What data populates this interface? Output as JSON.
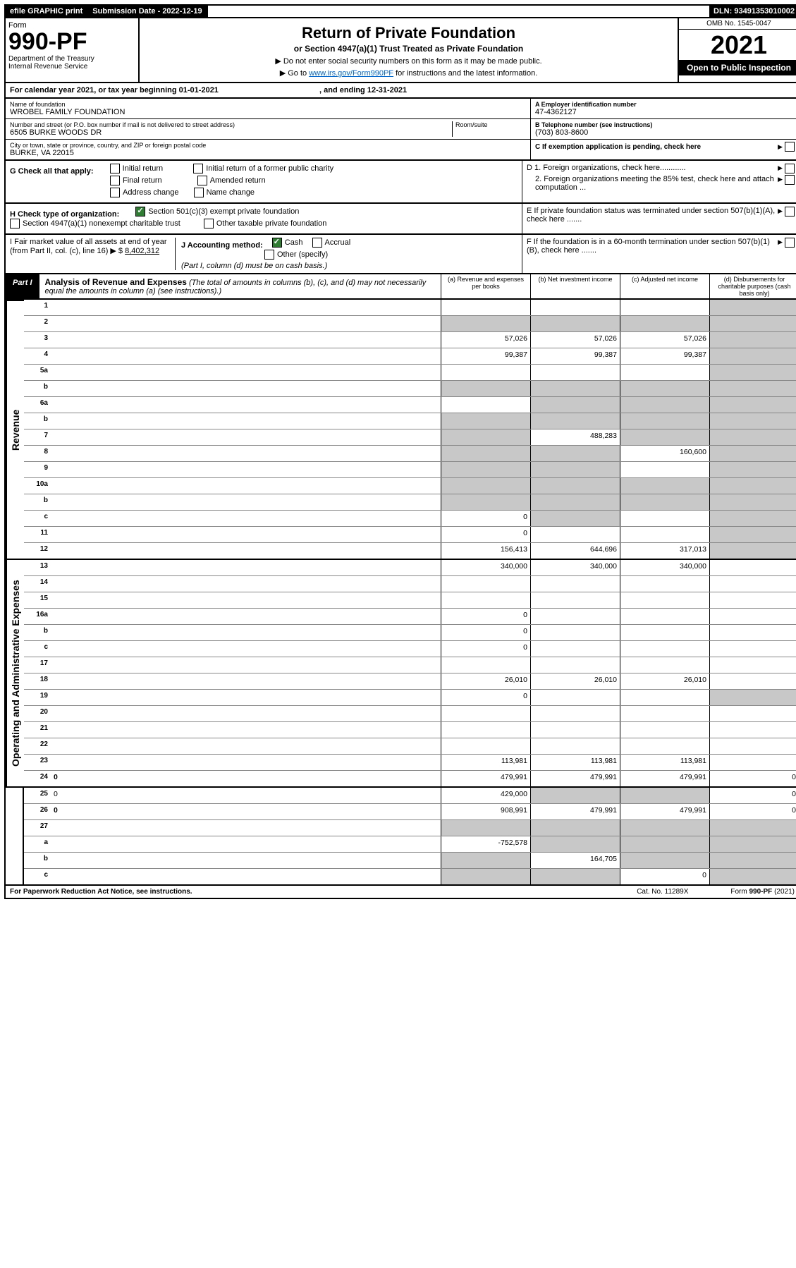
{
  "topbar": {
    "efile": "efile GRAPHIC print",
    "submission_label": "Submission Date - 2022-12-19",
    "dln": "DLN: 93491353010002"
  },
  "header": {
    "form_word": "Form",
    "form_no": "990-PF",
    "dept": "Department of the Treasury",
    "irs": "Internal Revenue Service",
    "title": "Return of Private Foundation",
    "subtitle": "or Section 4947(a)(1) Trust Treated as Private Foundation",
    "instr1": "▶ Do not enter social security numbers on this form as it may be made public.",
    "instr2_pre": "▶ Go to ",
    "instr2_link": "www.irs.gov/Form990PF",
    "instr2_post": " for instructions and the latest information.",
    "omb": "OMB No. 1545-0047",
    "year": "2021",
    "open_public": "Open to Public Inspection"
  },
  "cal_year": {
    "pre": "For calendar year 2021, or tax year beginning ",
    "begin": "01-01-2021",
    "mid": " , and ending ",
    "end": "12-31-2021"
  },
  "info": {
    "name_lbl": "Name of foundation",
    "name_val": "WROBEL FAMILY FOUNDATION",
    "addr_lbl": "Number and street (or P.O. box number if mail is not delivered to street address)",
    "addr_val": "6505 BURKE WOODS DR",
    "room_lbl": "Room/suite",
    "city_lbl": "City or town, state or province, country, and ZIP or foreign postal code",
    "city_val": "BURKE, VA  22015",
    "a_lbl": "A Employer identification number",
    "a_val": "47-4362127",
    "b_lbl": "B Telephone number (see instructions)",
    "b_val": "(703) 803-8600",
    "c_lbl": "C If exemption application is pending, check here",
    "d1_lbl": "D 1. Foreign organizations, check here............",
    "d2_lbl": "2. Foreign organizations meeting the 85% test, check here and attach computation ...",
    "e_lbl": "E  If private foundation status was terminated under section 507(b)(1)(A), check here .......",
    "f_lbl": "F  If the foundation is in a 60-month termination under section 507(b)(1)(B), check here .......",
    "g_lbl": "G Check all that apply:",
    "g_opts": [
      "Initial return",
      "Final return",
      "Address change",
      "Initial return of a former public charity",
      "Amended return",
      "Name change"
    ],
    "h_lbl": "H Check type of organization:",
    "h_opt1": "Section 501(c)(3) exempt private foundation",
    "h_opt2": "Section 4947(a)(1) nonexempt charitable trust",
    "h_opt3": "Other taxable private foundation",
    "i_lbl": "I Fair market value of all assets at end of year (from Part II, col. (c), line 16) ▶ $",
    "i_val": "8,402,312",
    "j_lbl": "J Accounting method:",
    "j_opt1": "Cash",
    "j_opt2": "Accrual",
    "j_opt3": "Other (specify)",
    "j_note": "(Part I, column (d) must be on cash basis.)"
  },
  "part1": {
    "label": "Part I",
    "title": "Analysis of Revenue and Expenses",
    "title_note": "(The total of amounts in columns (b), (c), and (d) may not necessarily equal the amounts in column (a) (see instructions).)",
    "col_a": "(a)   Revenue and expenses per books",
    "col_b": "(b)   Net investment income",
    "col_c": "(c)   Adjusted net income",
    "col_d": "(d)   Disbursements for charitable purposes (cash basis only)"
  },
  "side_labels": {
    "revenue": "Revenue",
    "expenses": "Operating and Administrative Expenses"
  },
  "rows": [
    {
      "n": "1",
      "d": "",
      "a": "",
      "b": "",
      "c": "",
      "grey": [
        "d"
      ]
    },
    {
      "n": "2",
      "d": "",
      "a": "",
      "b": "",
      "c": "",
      "grey": [
        "a",
        "b",
        "c",
        "d"
      ],
      "checked": true
    },
    {
      "n": "3",
      "d": "",
      "a": "57,026",
      "b": "57,026",
      "c": "57,026",
      "grey": [
        "d"
      ]
    },
    {
      "n": "4",
      "d": "",
      "a": "99,387",
      "b": "99,387",
      "c": "99,387",
      "grey": [
        "d"
      ]
    },
    {
      "n": "5a",
      "d": "",
      "a": "",
      "b": "",
      "c": "",
      "grey": [
        "d"
      ]
    },
    {
      "n": "b",
      "d": "",
      "a": "",
      "b": "",
      "c": "",
      "grey": [
        "a",
        "b",
        "c",
        "d"
      ]
    },
    {
      "n": "6a",
      "d": "",
      "a": "",
      "b": "",
      "c": "",
      "grey": [
        "b",
        "c",
        "d"
      ]
    },
    {
      "n": "b",
      "d": "",
      "a": "",
      "b": "",
      "c": "",
      "grey": [
        "a",
        "b",
        "c",
        "d"
      ]
    },
    {
      "n": "7",
      "d": "",
      "a": "",
      "b": "488,283",
      "c": "",
      "grey": [
        "a",
        "c",
        "d"
      ]
    },
    {
      "n": "8",
      "d": "",
      "a": "",
      "b": "",
      "c": "160,600",
      "grey": [
        "a",
        "b",
        "d"
      ]
    },
    {
      "n": "9",
      "d": "",
      "a": "",
      "b": "",
      "c": "",
      "grey": [
        "a",
        "b",
        "d"
      ]
    },
    {
      "n": "10a",
      "d": "",
      "a": "",
      "b": "",
      "c": "",
      "grey": [
        "a",
        "b",
        "c",
        "d"
      ]
    },
    {
      "n": "b",
      "d": "",
      "a": "",
      "b": "",
      "c": "",
      "grey": [
        "a",
        "b",
        "c",
        "d"
      ]
    },
    {
      "n": "c",
      "d": "",
      "a": "0",
      "b": "",
      "c": "",
      "grey": [
        "b",
        "d"
      ]
    },
    {
      "n": "11",
      "d": "",
      "a": "0",
      "b": "",
      "c": "",
      "grey": [
        "d"
      ]
    },
    {
      "n": "12",
      "d": "",
      "a": "156,413",
      "b": "644,696",
      "c": "317,013",
      "bold": true,
      "grey": [
        "d"
      ]
    },
    {
      "n": "13",
      "d": "",
      "a": "340,000",
      "b": "340,000",
      "c": "340,000"
    },
    {
      "n": "14",
      "d": "",
      "a": "",
      "b": "",
      "c": ""
    },
    {
      "n": "15",
      "d": "",
      "a": "",
      "b": "",
      "c": ""
    },
    {
      "n": "16a",
      "d": "",
      "a": "0",
      "b": "",
      "c": ""
    },
    {
      "n": "b",
      "d": "",
      "a": "0",
      "b": "",
      "c": ""
    },
    {
      "n": "c",
      "d": "",
      "a": "0",
      "b": "",
      "c": ""
    },
    {
      "n": "17",
      "d": "",
      "a": "",
      "b": "",
      "c": ""
    },
    {
      "n": "18",
      "d": "",
      "a": "26,010",
      "b": "26,010",
      "c": "26,010"
    },
    {
      "n": "19",
      "d": "",
      "a": "0",
      "b": "",
      "c": "",
      "grey": [
        "d"
      ]
    },
    {
      "n": "20",
      "d": "",
      "a": "",
      "b": "",
      "c": ""
    },
    {
      "n": "21",
      "d": "",
      "a": "",
      "b": "",
      "c": ""
    },
    {
      "n": "22",
      "d": "",
      "a": "",
      "b": "",
      "c": ""
    },
    {
      "n": "23",
      "d": "",
      "a": "113,981",
      "b": "113,981",
      "c": "113,981"
    },
    {
      "n": "24",
      "d": "0",
      "a": "479,991",
      "b": "479,991",
      "c": "479,991",
      "bold": true
    },
    {
      "n": "25",
      "d": "0",
      "a": "429,000",
      "b": "",
      "c": "",
      "grey": [
        "b",
        "c"
      ]
    },
    {
      "n": "26",
      "d": "0",
      "a": "908,991",
      "b": "479,991",
      "c": "479,991",
      "bold": true
    },
    {
      "n": "27",
      "d": "",
      "a": "",
      "b": "",
      "c": "",
      "grey": [
        "a",
        "b",
        "c",
        "d"
      ]
    },
    {
      "n": "a",
      "d": "",
      "a": "-752,578",
      "b": "",
      "c": "",
      "bold": true,
      "grey": [
        "b",
        "c",
        "d"
      ]
    },
    {
      "n": "b",
      "d": "",
      "a": "",
      "b": "164,705",
      "c": "",
      "bold": true,
      "grey": [
        "a",
        "c",
        "d"
      ]
    },
    {
      "n": "c",
      "d": "",
      "a": "",
      "b": "",
      "c": "0",
      "bold": true,
      "grey": [
        "a",
        "b",
        "d"
      ]
    }
  ],
  "footer": {
    "left": "For Paperwork Reduction Act Notice, see instructions.",
    "mid": "Cat. No. 11289X",
    "right": "Form 990-PF (2021)"
  },
  "colors": {
    "black": "#000000",
    "white": "#ffffff",
    "grey_fill": "#c8c8c8",
    "link": "#0066cc",
    "check_green": "#2e7d32"
  }
}
